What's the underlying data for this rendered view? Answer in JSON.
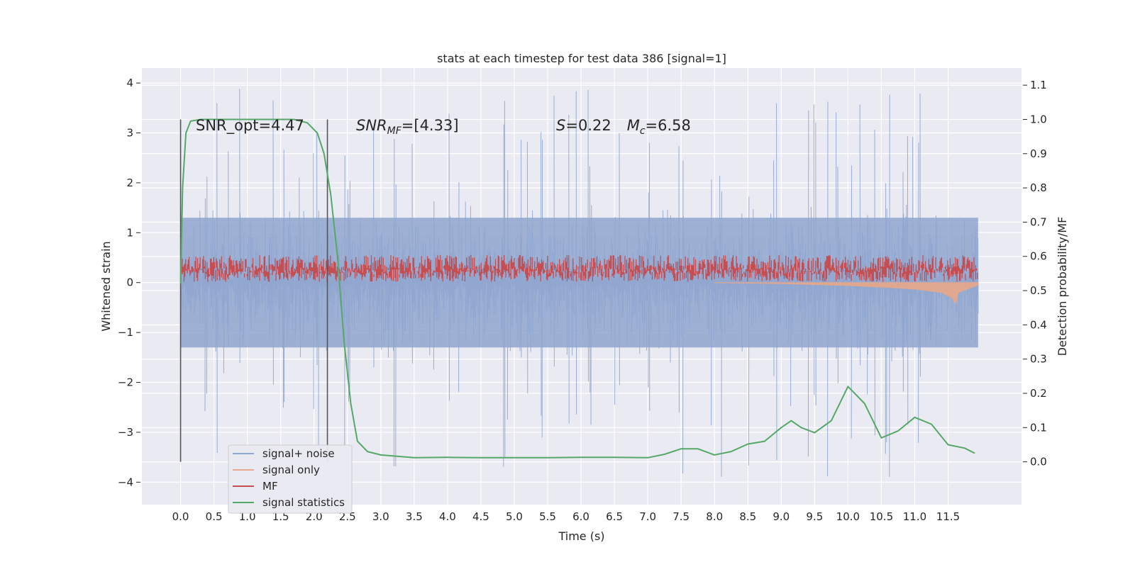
{
  "chart_data": {
    "type": "line",
    "title": "stats at each timestep for test data 386 [signal=1]",
    "xlabel": "Time (s)",
    "ylabel": "Whitened strain",
    "y2label": "Detection probability/MF",
    "xlim": [
      -0.58,
      12.6
    ],
    "ylim": [
      -4.45,
      4.3
    ],
    "y2lim": [
      -0.125,
      1.15
    ],
    "xticks": [
      "0.0",
      "0.5",
      "1.0",
      "1.5",
      "2.0",
      "2.5",
      "3.0",
      "3.5",
      "4.0",
      "4.5",
      "5.0",
      "5.5",
      "6.0",
      "6.5",
      "7.0",
      "7.5",
      "8.0",
      "8.5",
      "9.0",
      "9.5",
      "10.0",
      "10.5",
      "11.0",
      "11.5"
    ],
    "yticks": [
      "4",
      "3",
      "2",
      "1",
      "0",
      "−1",
      "−2",
      "−3",
      "−4"
    ],
    "y2ticks": [
      "1.1",
      "1.0",
      "0.9",
      "0.8",
      "0.7",
      "0.6",
      "0.5",
      "0.4",
      "0.3",
      "0.2",
      "0.1",
      "0.0"
    ],
    "grid": true,
    "legend_position": "lower-left",
    "annotations": {
      "snr_opt": "SNR_opt=4.47",
      "snr_mf_sym": "SNR",
      "snr_mf_sub": "MF",
      "snr_mf_val": "=[4.33]",
      "s_sym": "S",
      "s_val": "=0.22",
      "mc_sym": "M",
      "mc_sub": "c",
      "mc_val": "=6.58"
    },
    "vlines": [
      0.0,
      2.2
    ],
    "series": [
      {
        "name": "signal+ noise",
        "color": "#8fa6cf",
        "axis": "left",
        "envelope": {
          "x_range": [
            0.0,
            11.95
          ],
          "typical_amplitude": 2.1,
          "max_peak": 3.9,
          "min_peak": -4.1
        }
      },
      {
        "name": "signal only",
        "color": "#e8a88a",
        "axis": "left",
        "points": [
          [
            8.0,
            0.0
          ],
          [
            9.0,
            -0.02
          ],
          [
            10.0,
            -0.06
          ],
          [
            10.5,
            -0.09
          ],
          [
            11.0,
            -0.13
          ],
          [
            11.4,
            -0.2
          ],
          [
            11.55,
            -0.3
          ],
          [
            11.62,
            -0.42
          ],
          [
            11.65,
            -0.2
          ],
          [
            11.95,
            -0.05
          ]
        ]
      },
      {
        "name": "MF",
        "color": "#c44e52",
        "axis": "left",
        "envelope": {
          "x_range": [
            0.0,
            11.95
          ],
          "center": 0.3,
          "amplitude": 0.3
        }
      },
      {
        "name": "signal statistics",
        "color": "#55a868",
        "axis": "right",
        "x": [
          0.0,
          0.03,
          0.08,
          0.15,
          0.3,
          1.0,
          1.7,
          1.9,
          2.05,
          2.15,
          2.25,
          2.35,
          2.45,
          2.55,
          2.65,
          2.8,
          3.0,
          3.5,
          4.0,
          4.5,
          5.0,
          5.5,
          6.0,
          6.5,
          7.0,
          7.25,
          7.5,
          7.75,
          8.0,
          8.25,
          8.5,
          8.75,
          9.0,
          9.15,
          9.3,
          9.5,
          9.75,
          10.0,
          10.25,
          10.5,
          10.75,
          11.0,
          11.25,
          11.5,
          11.75,
          11.9
        ],
        "y": [
          0.52,
          0.8,
          0.96,
          0.995,
          1.0,
          1.0,
          1.0,
          0.99,
          0.96,
          0.9,
          0.78,
          0.6,
          0.35,
          0.17,
          0.06,
          0.03,
          0.02,
          0.012,
          0.013,
          0.012,
          0.012,
          0.012,
          0.013,
          0.013,
          0.012,
          0.022,
          0.038,
          0.038,
          0.02,
          0.03,
          0.052,
          0.06,
          0.1,
          0.12,
          0.1,
          0.085,
          0.12,
          0.22,
          0.17,
          0.07,
          0.09,
          0.13,
          0.11,
          0.05,
          0.04,
          0.025
        ]
      }
    ]
  }
}
